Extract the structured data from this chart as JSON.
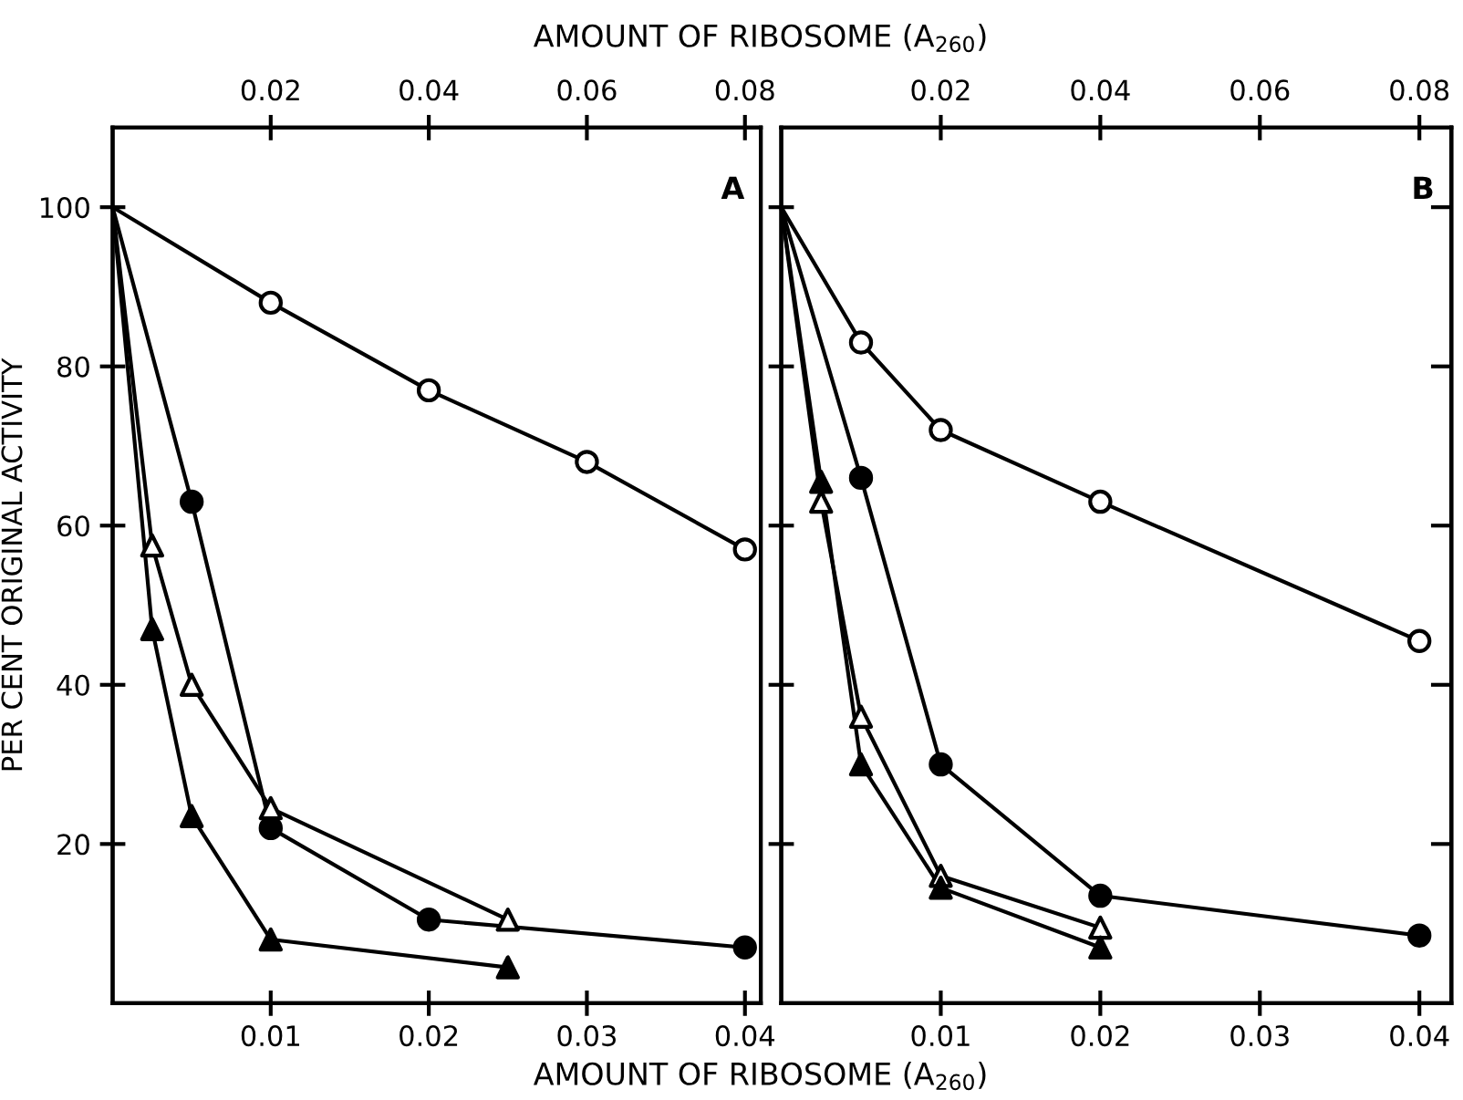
{
  "chart_data": [
    {
      "type": "line",
      "ylabel": "PER CENT ORIGINAL ACTIVITY",
      "xlabel": "AMOUNT OF RIBOSOME (A$_{260}$)",
      "x2label": "AMOUNT OF RIBOSOME (A$_{260}$)",
      "annotations": [
        "A"
      ],
      "xlim": [
        0,
        0.041
      ],
      "xticks": [
        0.01,
        0.02,
        0.03,
        0.04
      ],
      "x2lim": [
        0,
        0.082
      ],
      "x2ticks": [
        0.02,
        0.04,
        0.06,
        0.08
      ],
      "ylim": [
        0,
        110
      ],
      "yticks": [
        20,
        40,
        60,
        80,
        100
      ],
      "line_style": "solid",
      "series": [
        {
          "axis": "x2",
          "marker": "circle",
          "color": "#000000",
          "colors": [
            null,
            "#ffffff",
            "#ffffff",
            "#ffffff",
            "#ffffff"
          ],
          "x": [
            0,
            0.02,
            0.04,
            0.06,
            0.08
          ],
          "values": [
            100,
            88,
            77,
            68,
            57
          ]
        },
        {
          "marker": "circle",
          "color": "#000000",
          "colors": [
            null,
            "#000000",
            "#000000",
            "#000000",
            "#000000"
          ],
          "x": [
            0,
            0.005,
            0.01,
            0.02,
            0.04
          ],
          "values": [
            100,
            63,
            22,
            10.5,
            7
          ]
        },
        {
          "marker": "triangle",
          "color": "#000000",
          "colors": [
            null,
            "#ffffff",
            "#ffffff",
            "#ffffff",
            "#ffffff"
          ],
          "x": [
            0,
            0.0025,
            0.005,
            0.01,
            0.025
          ],
          "values": [
            100,
            57.5,
            40,
            24.5,
            10.5
          ]
        },
        {
          "marker": "triangle",
          "color": "#000000",
          "colors": [
            null,
            "#000000",
            "#000000",
            "#000000",
            "#000000"
          ],
          "x": [
            0,
            0.0025,
            0.005,
            0.01,
            0.025
          ],
          "values": [
            100,
            47,
            23.5,
            8,
            4.5
          ]
        }
      ]
    },
    {
      "type": "line",
      "annotations": [
        "B"
      ],
      "tick_labels": "x",
      "xlim": [
        0,
        0.042
      ],
      "xticks": [
        0.01,
        0.02,
        0.03,
        0.04
      ],
      "x2lim": [
        0,
        0.084
      ],
      "x2ticks": [
        0.02,
        0.04,
        0.06,
        0.08
      ],
      "ylim": [
        0,
        110
      ],
      "yticks": [
        20,
        40,
        60,
        80,
        100
      ],
      "line_style": "solid",
      "series": [
        {
          "axis": "x2",
          "marker": "circle",
          "color": "#000000",
          "colors": [
            null,
            "#ffffff",
            "#ffffff",
            "#ffffff",
            "#ffffff"
          ],
          "x": [
            0,
            0.01,
            0.02,
            0.04,
            0.08
          ],
          "values": [
            100,
            83,
            72,
            63,
            45.5
          ]
        },
        {
          "marker": "circle",
          "color": "#000000",
          "colors": [
            null,
            "#000000",
            "#000000",
            "#000000",
            "#000000"
          ],
          "x": [
            0,
            0.005,
            0.01,
            0.02,
            0.04
          ],
          "values": [
            100,
            66,
            30,
            13.5,
            8.5
          ]
        },
        {
          "marker": "triangle",
          "color": "#000000",
          "colors": [
            null,
            "#ffffff",
            "#ffffff",
            "#ffffff",
            "#ffffff"
          ],
          "x": [
            0,
            0.0025,
            0.005,
            0.01,
            0.02
          ],
          "values": [
            100,
            63,
            36,
            16,
            9.5
          ]
        },
        {
          "marker": "triangle",
          "color": "#000000",
          "colors": [
            null,
            "#000000",
            "#000000",
            "#000000",
            "#000000"
          ],
          "x": [
            0,
            0.0025,
            0.005,
            0.01,
            0.02
          ],
          "values": [
            100,
            65.5,
            30,
            14.5,
            7
          ]
        }
      ]
    }
  ]
}
